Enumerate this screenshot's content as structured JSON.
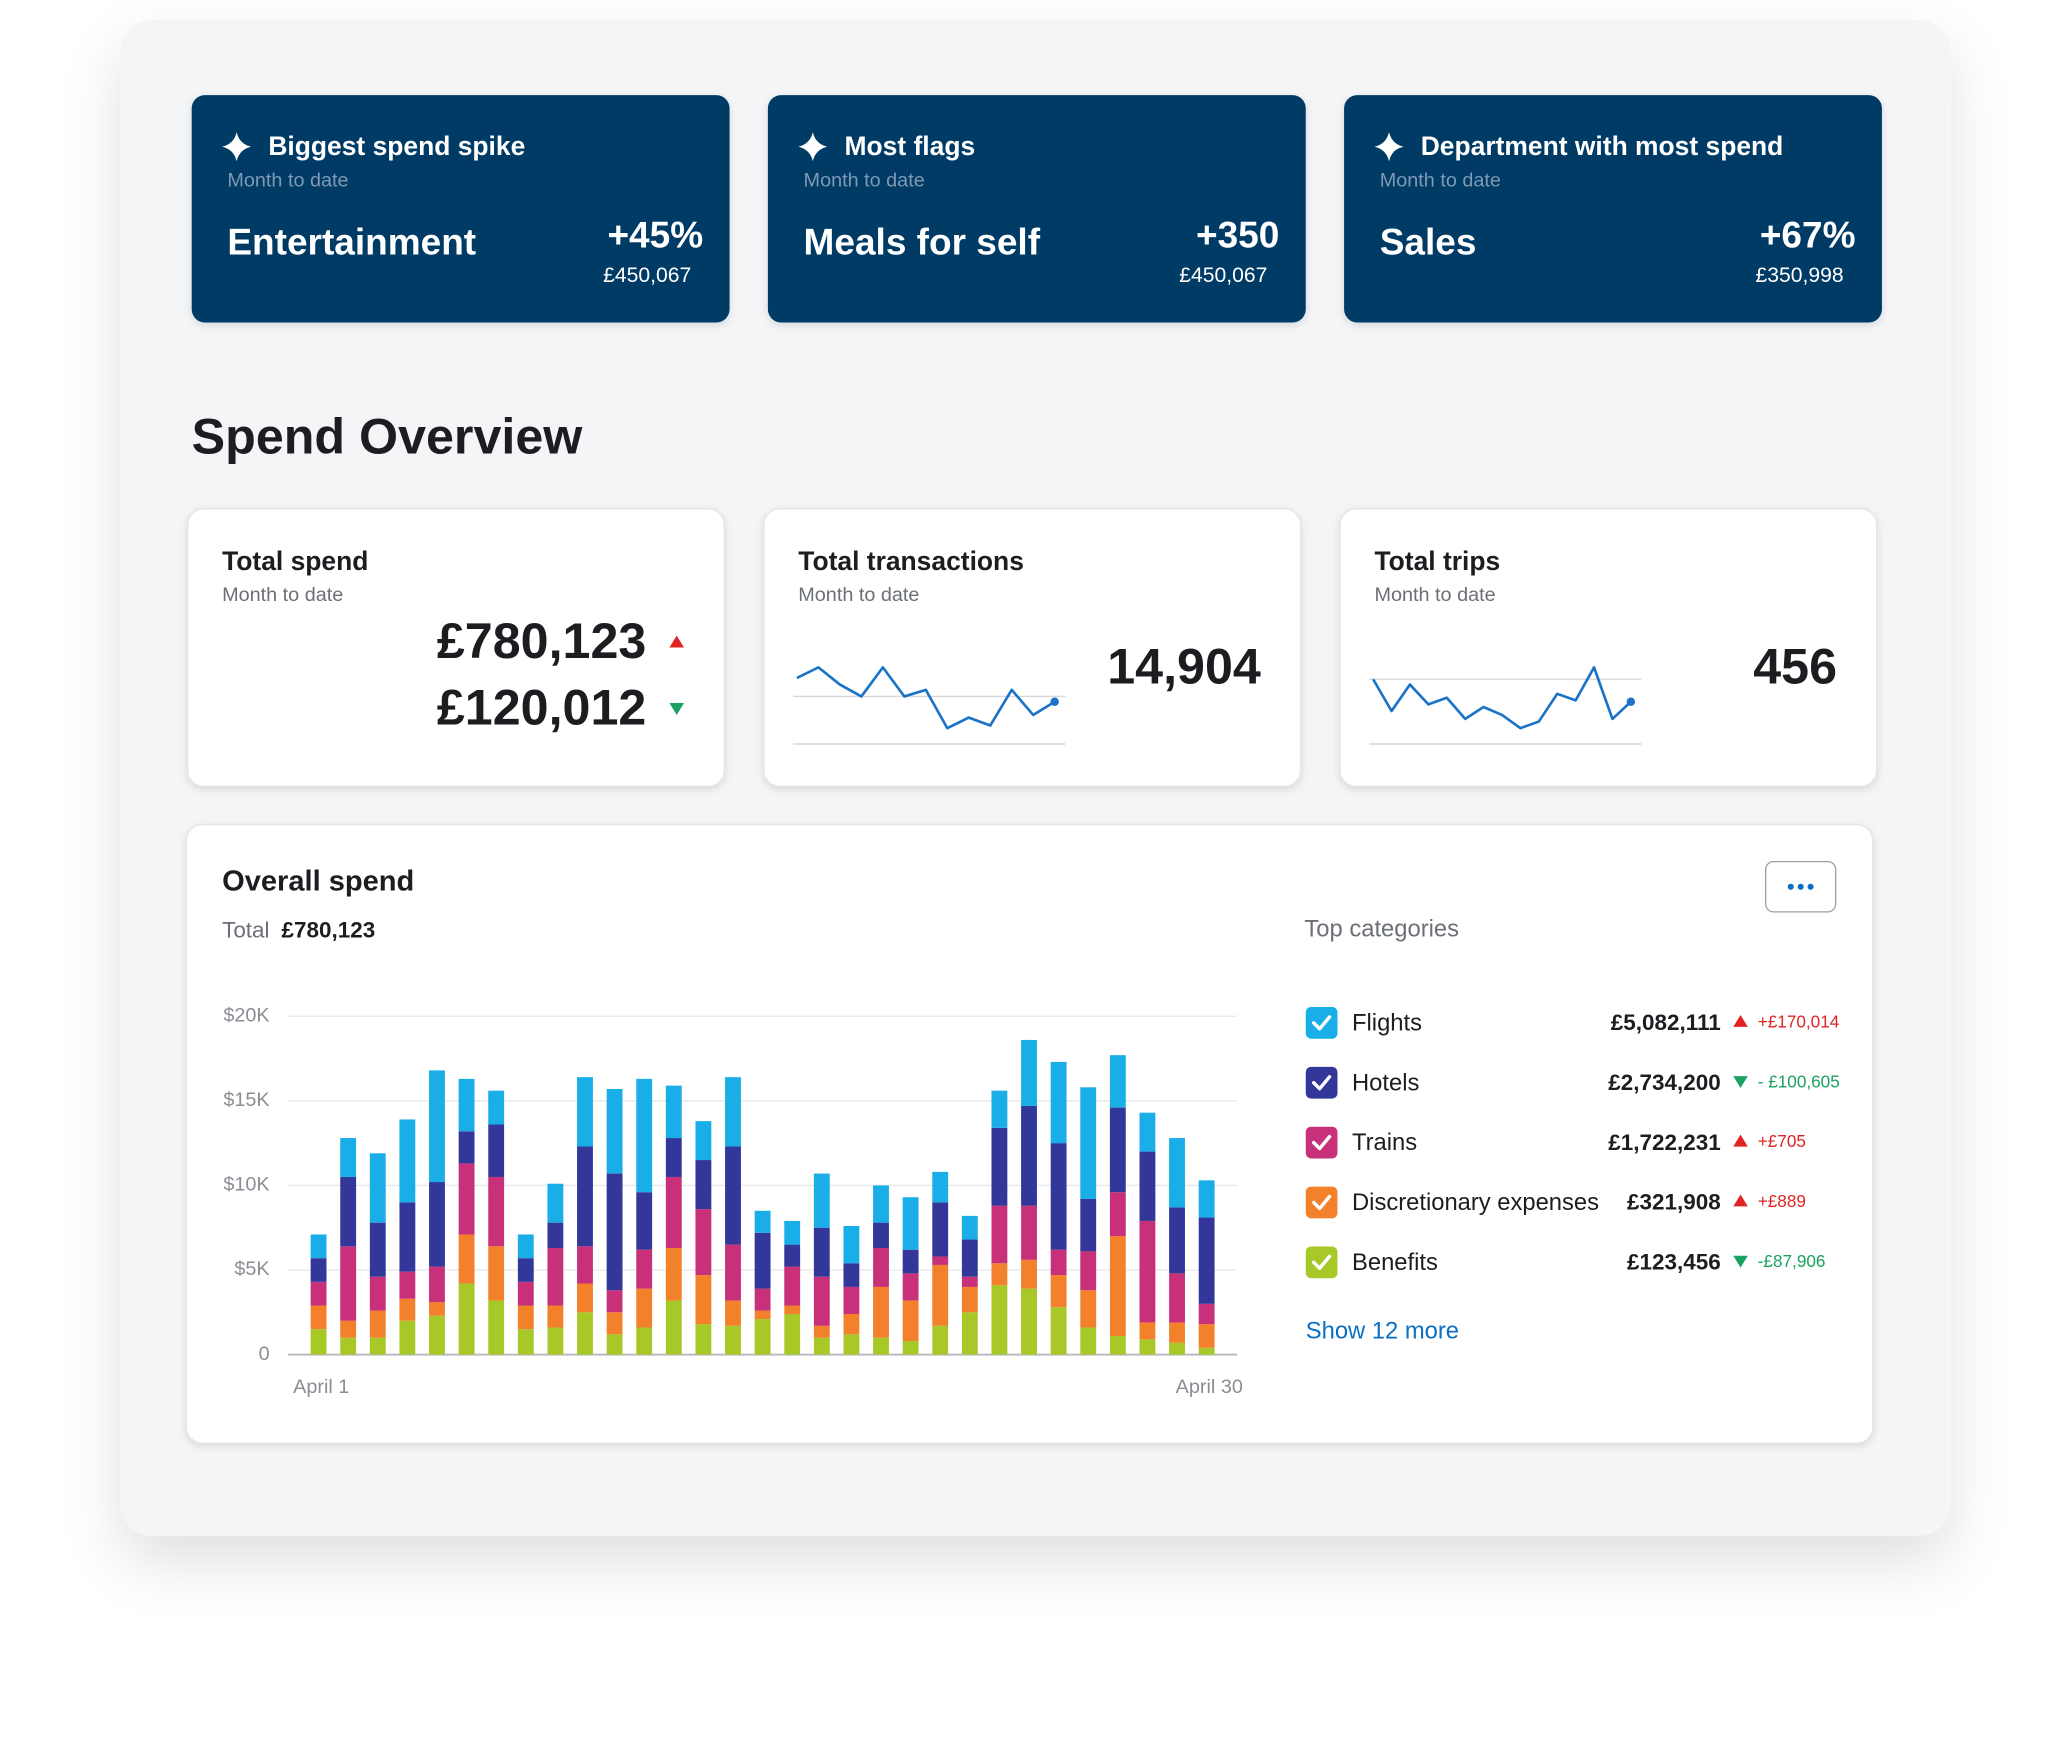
{
  "highlights": [
    {
      "title": "Biggest spend spike",
      "subtitle": "Month to date",
      "label": "Entertainment",
      "change": "+45%",
      "amount": "£450,067"
    },
    {
      "title": "Most flags",
      "subtitle": "Month to date",
      "label": "Meals for self",
      "change": "+350",
      "amount": "£450,067"
    },
    {
      "title": "Department with most spend",
      "subtitle": "Month to date",
      "label": "Sales",
      "change": "+67%",
      "amount": "£350,998"
    }
  ],
  "overview": {
    "title": "Spend Overview",
    "cards": [
      {
        "title": "Total spend",
        "subtitle": "Month to date",
        "figures": [
          {
            "value": "£780,123",
            "trend": "up"
          },
          {
            "value": "£120,012",
            "trend": "down"
          }
        ]
      },
      {
        "title": "Total transactions",
        "subtitle": "Month to date",
        "value": "14,904",
        "sparkline": {
          "values": [
            50,
            58,
            45,
            36,
            58,
            36,
            41,
            12,
            20,
            14,
            41,
            22,
            32
          ],
          "ylim": [
            0,
            60
          ],
          "baseline": 36,
          "color": "#1a73c7"
        }
      },
      {
        "title": "Total trips",
        "subtitle": "Month to date",
        "value": "456",
        "sparkline": {
          "values": [
            49,
            25,
            45,
            30,
            35,
            19,
            28,
            22,
            12,
            17,
            38,
            33,
            58,
            19,
            32
          ],
          "ylim": [
            0,
            60
          ],
          "baseline": 49,
          "color": "#1a73c7"
        }
      }
    ]
  },
  "overall_spend": {
    "title": "Overall spend",
    "total_label": "Total",
    "total": "£780,123"
  },
  "top_categories": {
    "title": "Top categories",
    "more": "Show 12 more",
    "items": [
      {
        "amount": "£5,082,111",
        "change": "+£170,014",
        "trend": "up"
      },
      {
        "amount": "£2,734,200",
        "change": "- £100,605",
        "trend": "down"
      },
      {
        "amount": "£1,722,231",
        "change": "+£705",
        "trend": "up"
      },
      {
        "amount": "£321,908",
        "change": "+£889",
        "trend": "up"
      },
      {
        "amount": "£123,456",
        "change": "-£87,906",
        "trend": "down"
      }
    ]
  },
  "chart_data": {
    "type": "stacked-bar",
    "categories": [
      "April 1",
      null,
      null,
      null,
      null,
      null,
      null,
      null,
      null,
      null,
      null,
      null,
      null,
      null,
      null,
      null,
      null,
      null,
      null,
      null,
      null,
      null,
      null,
      null,
      null,
      null,
      null,
      null,
      null,
      null,
      "April 30"
    ],
    "series": [
      {
        "name": "Flights",
        "color": "#1aaee8",
        "values": [
          1400,
          2300,
          4100,
          4900,
          6600,
          3100,
          2000,
          1400,
          2300,
          4100,
          5000,
          6700,
          3100,
          2300,
          4100,
          1300,
          1400,
          3200,
          2200,
          2200,
          3100,
          1800,
          1400,
          2200,
          3900,
          4800,
          6600,
          3100,
          2300,
          4100,
          2200
        ]
      },
      {
        "name": "Hotels",
        "color": "#33379a",
        "values": [
          1400,
          4100,
          3200,
          4100,
          5000,
          1900,
          3100,
          1400,
          1500,
          5900,
          6900,
          3400,
          2300,
          2900,
          5800,
          3300,
          1300,
          2900,
          1400,
          1500,
          1400,
          3200,
          2200,
          4600,
          5900,
          6300,
          3100,
          5000,
          4100,
          3900,
          5100
        ]
      },
      {
        "name": "Trains",
        "color": "#c8307a",
        "values": [
          1400,
          4400,
          2000,
          1600,
          2100,
          4200,
          4100,
          1400,
          3400,
          2200,
          1300,
          2300,
          4200,
          3900,
          3300,
          1300,
          2300,
          2900,
          1600,
          2300,
          1600,
          500,
          600,
          3400,
          3200,
          1500,
          2300,
          2600,
          6000,
          2900,
          1200
        ]
      },
      {
        "name": "Discretionary expenses",
        "color": "#f3802b",
        "values": [
          1400,
          1000,
          1600,
          1300,
          800,
          2900,
          3200,
          1400,
          1300,
          1700,
          1300,
          2300,
          3100,
          2900,
          1500,
          500,
          500,
          700,
          1200,
          3000,
          2400,
          3600,
          1500,
          1300,
          1700,
          1900,
          2200,
          5900,
          1000,
          1200,
          1400
        ]
      },
      {
        "name": "Benefits",
        "color": "#a7c826",
        "values": [
          1500,
          1000,
          1000,
          2000,
          2300,
          4200,
          3200,
          1500,
          1600,
          2500,
          1200,
          1600,
          3200,
          1800,
          1700,
          2100,
          2400,
          1000,
          1200,
          1000,
          800,
          1700,
          2500,
          4100,
          3900,
          2800,
          1600,
          1100,
          900,
          700,
          400
        ]
      }
    ],
    "ylim": [
      0,
      20000
    ],
    "yticks": [
      0,
      {
        "value": 5000,
        "label": "$5K"
      },
      {
        "value": 10000,
        "label": "$10K"
      },
      {
        "value": 15000,
        "label": "$15K"
      },
      {
        "value": 20000,
        "label": "$20K"
      }
    ],
    "grid": true
  }
}
